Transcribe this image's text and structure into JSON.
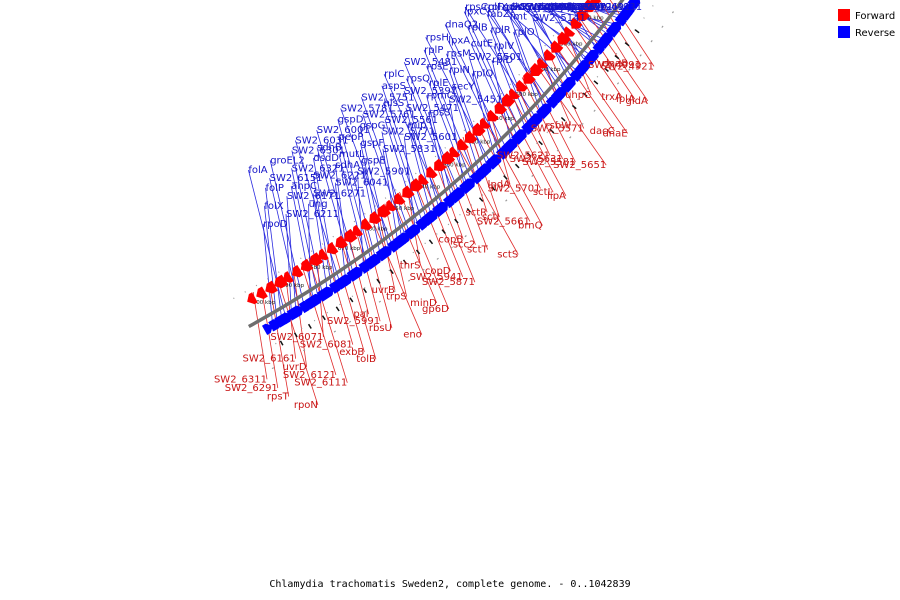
{
  "caption": "Chlamydia trachomatis Sweden2, complete genome. - 0..1042839",
  "legend": {
    "forward": {
      "label": "Forward",
      "color": "#ff0000"
    },
    "reverse": {
      "label": "Reverse",
      "color": "#0000ff"
    }
  },
  "ticks": [
    "700 kbp",
    "690 kbp",
    "680 kbp",
    "670 kbp",
    "660 kbp",
    "650 kbp",
    "640 kbp",
    "630 kbp",
    "620 kbp",
    "610 kbp",
    "600 kbp",
    "590 kbp",
    "580 kbp",
    "570 kbp",
    "560 kbp"
  ],
  "reverse_labels": [
    "rpoD",
    "folX",
    "folP",
    "folA",
    "SW2_6211",
    "SW2_6171",
    "SW2_6151",
    "groEL2",
    "ung",
    "ahpC",
    "SW2_6321",
    "SW2_6301",
    "SW2_6271",
    "SW2_6221",
    "dsdD",
    "SW2_6031",
    "SW2_6041",
    "sdhA",
    "sdhB",
    "SW2_6001",
    "SW2_5901",
    "mutL",
    "pepP",
    "gspD",
    "gspE",
    "gspF",
    "gspG",
    "SW2_5781",
    "SW2_5831",
    "SW2_5771",
    "SW2_5761",
    "SW2_5751",
    "SW2_5601",
    "SW2_5561",
    "hisS",
    "aspS",
    "mip",
    "SW2_5471",
    "SW2_5391",
    "rplC",
    "rpsS",
    "rpmC",
    "rpsQ",
    "SW2_5481",
    "SW2_5451",
    "rplE",
    "rpsE",
    "rplP",
    "secY",
    "rplN",
    "rpsM",
    "rpsH",
    "rplQ",
    "SW2_5501",
    "lpxA",
    "dnaQ2",
    "rplD",
    "cutE",
    "rplB",
    "lpxC",
    "rplV",
    "rplR",
    "fabZ",
    "rpsC",
    "rplO",
    "fmt",
    "rplX",
    "rplF",
    "SW2_5141",
    "SW2_5131",
    "rpsK",
    "ruvC",
    "ruvA",
    "rpoA",
    "gapA",
    "ndk",
    "SW2_5011",
    "glgC",
    "SW2_5041",
    "SW2_4971",
    "SW2_4961",
    "SW2_5061",
    "sohB",
    "polA",
    "pgsA",
    "fliY",
    "hemZ",
    "rho",
    "SW2_4931",
    "SW2_4911",
    "SW2_4901",
    "oppC2"
  ],
  "forward_labels": [
    "SW2_6311",
    "SW2_6291",
    "rpsT",
    "rpoN",
    "SW2_6161",
    "uvrD",
    "SW2_6121",
    "SW2_6111",
    "SW2_6071",
    "SW2_6081",
    "exbB",
    "tolB",
    "pal",
    "SW2_5991",
    "rbsU",
    "eno",
    "uvrB",
    "trpS",
    "minD",
    "gp6D",
    "thrS",
    "copD",
    "SW2_5941",
    "SW2_5871",
    "copB",
    "scc2",
    "sctT",
    "sctS",
    "sctR",
    "sctJ",
    "SW2_5661",
    "brnQ",
    "lpdA",
    "SW2_5701",
    "sctL",
    "lipA",
    "SW2_5621",
    "SW2_5631",
    "SW2_5581",
    "SW2_5651",
    "rsbW",
    "SW2_5571",
    "dacC",
    "dnaE",
    "uhpC",
    "trxA",
    "lplA",
    "gidA",
    "dnaB",
    "SW2_4991",
    "SW2_4921"
  ]
}
